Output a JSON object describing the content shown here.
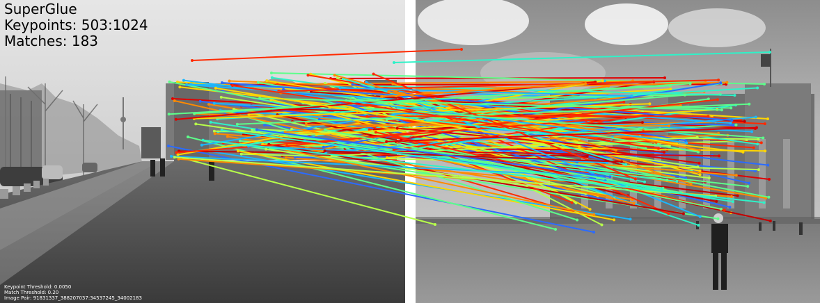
{
  "overlay": {
    "method": "SuperGlue",
    "keypoints": "Keypoints: 503:1024",
    "matches": "Matches: 183",
    "keypoint_threshold": "Keypoint Threshold: 0.0050",
    "match_threshold": "Match Threshold: 0.20",
    "image_pair": "Image Pair: 91831337_388207037:34537245_34002183"
  },
  "palette": {
    "separator": "#ffffff",
    "match_colors": [
      "#ff2a00",
      "#e00000",
      "#ff8a00",
      "#ffd500",
      "#b7ff4a",
      "#5dff8a",
      "#2ef2c8",
      "#1bb7ff",
      "#2b6bff",
      "#c40000"
    ]
  },
  "scenes": {
    "left": "grayscale street view with the Reichstag building far away",
    "right": "grayscale view of the Reichstag front facade with a person standing in the foreground"
  }
}
